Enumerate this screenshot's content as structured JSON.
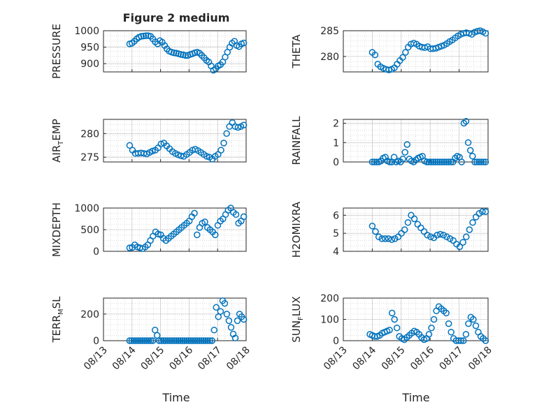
{
  "figure": {
    "title": "Figure 2 medium",
    "marker_color": "#0072BD",
    "axis_color": "#262626",
    "grid": "major and minor, dotted"
  },
  "chart_data": [
    {
      "type": "scatter",
      "ylabel": "PRESSURE",
      "xlim": [
        "08/13",
        "08/18"
      ],
      "ylim": [
        875,
        1000
      ],
      "yticks": [
        "1000",
        "950",
        "900"
      ],
      "points_y": [
        960,
        962,
        968,
        975,
        980,
        983,
        984,
        985,
        985,
        983,
        975,
        966,
        960,
        970,
        965,
        955,
        945,
        938,
        935,
        933,
        932,
        930,
        928,
        927,
        925,
        925,
        928,
        930,
        933,
        935,
        932,
        925,
        918,
        910,
        905,
        893,
        880,
        885,
        893,
        897,
        905,
        920,
        935,
        950,
        962,
        968,
        955,
        952,
        960,
        963
      ],
      "x_range": [
        "08/13 22:00",
        "08/17 22:00"
      ]
    },
    {
      "type": "scatter",
      "ylabel": "THETA",
      "xlim": [
        "08/13",
        "08/18"
      ],
      "ylim": [
        277,
        285
      ],
      "yticks": [
        "285",
        "280"
      ],
      "points_y": [
        280.8,
        280.3,
        278.5,
        278.0,
        277.7,
        277.5,
        277.4,
        277.5,
        277.8,
        278.5,
        279.2,
        279.8,
        280.8,
        281.8,
        282.4,
        282.6,
        282.4,
        282.0,
        281.8,
        281.7,
        281.9,
        281.5,
        281.5,
        281.6,
        281.8,
        282.0,
        282.2,
        282.5,
        282.9,
        283.2,
        283.6,
        284.0,
        284.3,
        284.5,
        284.6,
        284.5,
        284.3,
        284.7,
        284.9,
        285.0,
        284.8,
        284.5
      ],
      "x_range": [
        "08/14 00:00",
        "08/17 22:00"
      ]
    },
    {
      "type": "scatter",
      "ylabel": "AIR_TEMP",
      "ylabel_main": "AIR",
      "ylabel_sub": "T",
      "ylabel_rest": "EMP",
      "xlim": [
        "08/13",
        "08/18"
      ],
      "ylim": [
        274,
        283
      ],
      "yticks": [
        "280",
        "275"
      ],
      "points_y": [
        277.5,
        276.5,
        275.8,
        275.8,
        275.9,
        275.8,
        275.7,
        276.0,
        276.3,
        276.5,
        277.0,
        277.8,
        278.0,
        277.4,
        276.8,
        276.2,
        275.8,
        275.5,
        275.3,
        275.2,
        275.6,
        276.0,
        276.5,
        276.7,
        276.4,
        276.0,
        275.6,
        275.2,
        275.0,
        274.6,
        275.2,
        275.6,
        276.5,
        278.0,
        280.0,
        281.5,
        282.3,
        281.5,
        281.3,
        281.5,
        281.8
      ],
      "x_range": [
        "08/13 22:00",
        "08/17 22:00"
      ]
    },
    {
      "type": "scatter",
      "ylabel": "RAINFALL",
      "xlim": [
        "08/13",
        "08/18"
      ],
      "ylim": [
        0,
        2.2
      ],
      "yticks": [
        "2",
        "1",
        "0"
      ],
      "points_y": [
        0,
        0,
        0,
        0,
        0.05,
        0.2,
        0.25,
        0.05,
        0,
        0,
        0.25,
        0,
        0.05,
        0,
        0.15,
        0.5,
        0.9,
        0.15,
        0.05,
        0,
        0.1,
        0.2,
        0.25,
        0.3,
        0.05,
        0,
        0,
        0,
        0,
        0,
        0,
        0,
        0,
        0,
        0,
        0,
        0,
        0,
        0.2,
        0.3,
        0.25,
        0,
        2.0,
        2.1,
        1.0,
        0.6,
        0.3,
        0,
        0,
        0,
        0,
        0,
        0
      ],
      "x_range": [
        "08/14 00:00",
        "08/17 22:00"
      ]
    },
    {
      "type": "scatter",
      "ylabel": "MIXDEPTH",
      "xlim": [
        "08/13",
        "08/18"
      ],
      "ylim": [
        0,
        1000
      ],
      "yticks": [
        "1000",
        "500",
        "0"
      ],
      "points_y": [
        80,
        90,
        150,
        100,
        80,
        60,
        100,
        150,
        250,
        350,
        450,
        400,
        380,
        300,
        250,
        300,
        350,
        400,
        450,
        500,
        550,
        600,
        650,
        700,
        800,
        880,
        380,
        550,
        650,
        680,
        550,
        500,
        450,
        380,
        600,
        700,
        750,
        850,
        950,
        1000,
        900,
        850,
        650,
        700,
        800
      ],
      "x_range": [
        "08/13 22:00",
        "08/17 22:00"
      ]
    },
    {
      "type": "scatter",
      "ylabel": "H2OMIXRA",
      "xlim": [
        "08/13",
        "08/18"
      ],
      "ylim": [
        4,
        6.4
      ],
      "yticks": [
        "6",
        "5",
        "4"
      ],
      "points_y": [
        5.4,
        5.1,
        4.8,
        4.7,
        4.7,
        4.7,
        4.65,
        4.7,
        4.8,
        5.0,
        5.2,
        5.6,
        6.0,
        5.8,
        5.5,
        5.3,
        5.1,
        4.9,
        4.8,
        4.75,
        4.9,
        4.95,
        4.9,
        4.8,
        4.7,
        4.6,
        4.4,
        4.25,
        4.5,
        4.8,
        5.2,
        5.6,
        5.9,
        6.1,
        6.2,
        6.2
      ],
      "x_range": [
        "08/14 00:00",
        "08/17 22:00"
      ]
    },
    {
      "type": "scatter",
      "ylabel": "TERR_MSL",
      "ylabel_main": "TERR",
      "ylabel_sub": "M",
      "ylabel_rest": "SL",
      "xlim": [
        "08/13",
        "08/18"
      ],
      "ylim": [
        0,
        320
      ],
      "yticks": [
        "200",
        "0"
      ],
      "points_y": [
        0,
        0,
        0,
        0,
        0,
        0,
        0,
        0,
        0,
        0,
        0,
        0,
        80,
        40,
        0,
        0,
        0,
        0,
        0,
        0,
        0,
        0,
        0,
        0,
        0,
        0,
        0,
        0,
        0,
        0,
        0,
        0,
        0,
        0,
        0,
        0,
        0,
        0,
        0,
        0,
        80,
        250,
        180,
        220,
        300,
        280,
        200,
        150,
        100,
        50,
        20,
        150,
        200,
        180,
        160
      ],
      "x_range": [
        "08/13 22:00",
        "08/17 22:00"
      ]
    },
    {
      "type": "scatter",
      "ylabel": "SUN_FLUX",
      "ylabel_main": "SUN",
      "ylabel_sub": "F",
      "ylabel_rest": "LUX",
      "xlim": [
        "08/13",
        "08/18"
      ],
      "ylim": [
        0,
        200
      ],
      "yticks": [
        "200",
        "100",
        "0"
      ],
      "points_y": [
        30,
        25,
        20,
        20,
        25,
        35,
        40,
        45,
        50,
        130,
        100,
        60,
        20,
        10,
        5,
        15,
        25,
        35,
        45,
        40,
        30,
        15,
        5,
        10,
        30,
        60,
        100,
        140,
        160,
        150,
        140,
        130,
        80,
        40,
        10,
        0,
        0,
        0,
        0,
        30,
        80,
        110,
        100,
        70,
        40,
        20,
        10,
        0
      ],
      "x_range": [
        "08/13 22:00",
        "08/17 22:00"
      ]
    }
  ],
  "x_ticks": [
    "08/13",
    "08/14",
    "08/15",
    "08/16",
    "08/17",
    "08/18"
  ],
  "xlabel_left": "Time",
  "xlabel_right": "Time"
}
